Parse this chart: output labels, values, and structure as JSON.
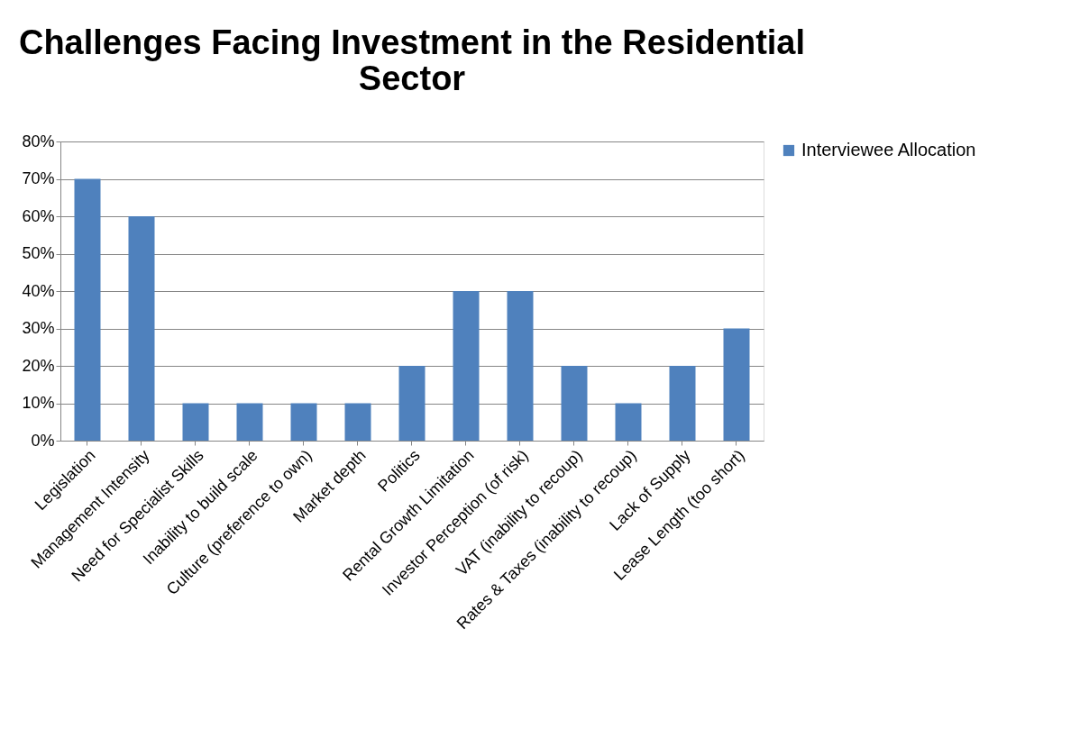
{
  "chart_data": {
    "type": "bar",
    "title": "Challenges Facing Investment in the Residential Sector",
    "categories": [
      "Legislation",
      "Management Intensity",
      "Need for Specialist Skills",
      "Inability to build scale",
      "Culture (preference to own)",
      "Market depth",
      "Politics",
      "Rental Growth Limitation",
      "Investor Perception (of risk)",
      "VAT (inability to recoup)",
      "Rates & Taxes (inability to recoup)",
      "Lack of Supply",
      "Lease Length (too short)"
    ],
    "series": [
      {
        "name": "Interviewee Allocation",
        "color": "#4f81bd",
        "values": [
          70,
          60,
          10,
          10,
          10,
          10,
          20,
          40,
          40,
          20,
          10,
          20,
          30
        ]
      }
    ],
    "ylim": [
      0,
      80
    ],
    "yticks": [
      {
        "value": 0,
        "label": "0%"
      },
      {
        "value": 10,
        "label": "10%"
      },
      {
        "value": 20,
        "label": "20%"
      },
      {
        "value": 30,
        "label": "30%"
      },
      {
        "value": 40,
        "label": "40%"
      },
      {
        "value": 50,
        "label": "50%"
      },
      {
        "value": 60,
        "label": "60%"
      },
      {
        "value": 70,
        "label": "70%"
      },
      {
        "value": 80,
        "label": "80%"
      }
    ],
    "grid": "y",
    "legend": "right"
  }
}
